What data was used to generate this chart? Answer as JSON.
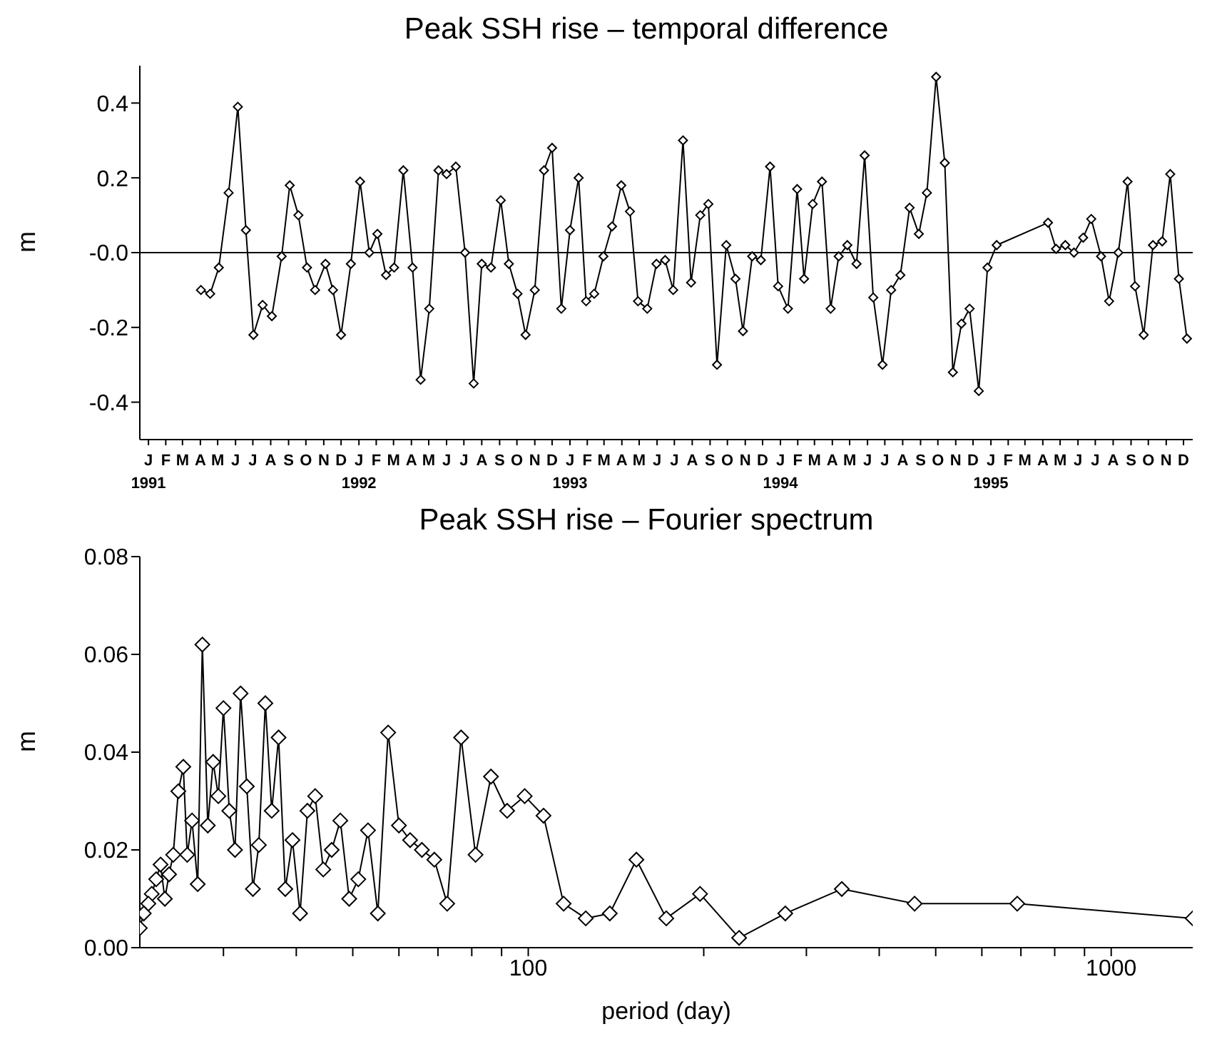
{
  "chart_data": [
    {
      "type": "line",
      "title": "Peak SSH rise – temporal difference",
      "ylabel": "m",
      "color": "#000000",
      "marker": "diamond",
      "line_style": "solid",
      "grid": false,
      "x": [
        "1991-04-17",
        "1991-05-03",
        "1991-05-18",
        "1991-06-04",
        "1991-06-20",
        "1991-07-04",
        "1991-07-17",
        "1991-08-02",
        "1991-08-18",
        "1991-09-04",
        "1991-09-18",
        "1991-10-03",
        "1991-10-18",
        "1991-11-01",
        "1991-11-19",
        "1991-12-02",
        "1991-12-16",
        "1992-01-02",
        "1992-01-18",
        "1992-02-03",
        "1992-02-17",
        "1992-03-03",
        "1992-03-17",
        "1992-04-02",
        "1992-04-18",
        "1992-05-02",
        "1992-05-17",
        "1992-06-02",
        "1992-06-16",
        "1992-07-02",
        "1992-07-18",
        "1992-08-02",
        "1992-08-16",
        "1992-09-01",
        "1992-09-18",
        "1992-10-02",
        "1992-10-17",
        "1992-10-31",
        "1992-11-16",
        "1992-12-02",
        "1992-12-16",
        "1993-01-01",
        "1993-01-16",
        "1993-01-31",
        "1993-02-13",
        "1993-02-27",
        "1993-03-15",
        "1993-03-30",
        "1993-04-15",
        "1993-04-30",
        "1993-05-14",
        "1993-05-30",
        "1993-06-15",
        "1993-06-30",
        "1993-07-14",
        "1993-07-31",
        "1993-08-14",
        "1993-08-30",
        "1993-09-13",
        "1993-09-28",
        "1993-10-14",
        "1993-10-30",
        "1993-11-12",
        "1993-11-28",
        "1993-12-13",
        "1993-12-29",
        "1994-01-12",
        "1994-01-29",
        "1994-02-14",
        "1994-02-26",
        "1994-03-13",
        "1994-03-29",
        "1994-04-13",
        "1994-04-27",
        "1994-05-12",
        "1994-05-28",
        "1994-06-11",
        "1994-06-26",
        "1994-07-12",
        "1994-07-27",
        "1994-08-12",
        "1994-08-28",
        "1994-09-13",
        "1994-09-27",
        "1994-10-13",
        "1994-10-28",
        "1994-11-11",
        "1994-11-26",
        "1994-12-10",
        "1994-12-26",
        "1995-01-10",
        "1995-01-26",
        "1995-04-25",
        "1995-05-09",
        "1995-05-25",
        "1995-06-09",
        "1995-06-25",
        "1995-07-09",
        "1995-07-26",
        "1995-08-09",
        "1995-08-25",
        "1995-09-10",
        "1995-09-23",
        "1995-10-08",
        "1995-10-24",
        "1995-11-09",
        "1995-11-23",
        "1995-12-08",
        "1995-12-22"
      ],
      "values": [
        -0.1,
        -0.11,
        -0.04,
        0.16,
        0.39,
        0.06,
        -0.22,
        -0.14,
        -0.17,
        -0.01,
        0.18,
        0.1,
        -0.04,
        -0.1,
        -0.03,
        -0.1,
        -0.22,
        -0.03,
        0.19,
        0.0,
        0.05,
        -0.06,
        -0.04,
        0.22,
        -0.04,
        -0.34,
        -0.15,
        0.22,
        0.21,
        0.23,
        0.0,
        -0.35,
        -0.03,
        -0.04,
        0.14,
        -0.03,
        -0.11,
        -0.22,
        -0.1,
        0.22,
        0.28,
        -0.15,
        0.06,
        0.2,
        -0.13,
        -0.11,
        -0.01,
        0.07,
        0.18,
        0.11,
        -0.13,
        -0.15,
        -0.03,
        -0.02,
        -0.1,
        0.3,
        -0.08,
        0.1,
        0.13,
        -0.3,
        0.02,
        -0.07,
        -0.21,
        -0.01,
        -0.02,
        0.23,
        -0.09,
        -0.15,
        0.17,
        -0.07,
        0.13,
        0.19,
        -0.15,
        -0.01,
        0.02,
        -0.03,
        0.26,
        -0.12,
        -0.3,
        -0.1,
        -0.06,
        0.12,
        0.05,
        0.16,
        0.47,
        0.24,
        -0.32,
        -0.19,
        -0.15,
        -0.37,
        -0.04,
        0.02,
        0.08,
        0.01,
        0.02,
        0.0,
        0.04,
        0.09,
        -0.01,
        -0.13,
        0.0,
        0.19,
        -0.09,
        -0.22,
        0.02,
        0.03,
        0.21,
        -0.07,
        -0.23
      ],
      "xlim": [
        "1991-01-01",
        "1996-01-01"
      ],
      "xticks": [
        {
          "value": "1991-01-16",
          "label": "J\n1991"
        },
        {
          "value": "1991-02-15",
          "label": "F"
        },
        {
          "value": "1991-03-16",
          "label": "M"
        },
        {
          "value": "1991-04-16",
          "label": "A"
        },
        {
          "value": "1991-05-16",
          "label": "M"
        },
        {
          "value": "1991-06-16",
          "label": "J"
        },
        {
          "value": "1991-07-16",
          "label": "J"
        },
        {
          "value": "1991-08-16",
          "label": "A"
        },
        {
          "value": "1991-09-16",
          "label": "S"
        },
        {
          "value": "1991-10-16",
          "label": "O"
        },
        {
          "value": "1991-11-16",
          "label": "N"
        },
        {
          "value": "1991-12-16",
          "label": "D"
        },
        {
          "value": "1992-01-16",
          "label": "J\n1992"
        },
        {
          "value": "1992-02-15",
          "label": "F"
        },
        {
          "value": "1992-03-16",
          "label": "M"
        },
        {
          "value": "1992-04-16",
          "label": "A"
        },
        {
          "value": "1992-05-16",
          "label": "M"
        },
        {
          "value": "1992-06-16",
          "label": "J"
        },
        {
          "value": "1992-07-16",
          "label": "J"
        },
        {
          "value": "1992-08-16",
          "label": "A"
        },
        {
          "value": "1992-09-16",
          "label": "S"
        },
        {
          "value": "1992-10-16",
          "label": "O"
        },
        {
          "value": "1992-11-16",
          "label": "N"
        },
        {
          "value": "1992-12-16",
          "label": "D"
        },
        {
          "value": "1993-01-16",
          "label": "J\n1993"
        },
        {
          "value": "1993-02-15",
          "label": "F"
        },
        {
          "value": "1993-03-16",
          "label": "M"
        },
        {
          "value": "1993-04-16",
          "label": "A"
        },
        {
          "value": "1993-05-16",
          "label": "M"
        },
        {
          "value": "1993-06-16",
          "label": "J"
        },
        {
          "value": "1993-07-16",
          "label": "J"
        },
        {
          "value": "1993-08-16",
          "label": "A"
        },
        {
          "value": "1993-09-16",
          "label": "S"
        },
        {
          "value": "1993-10-16",
          "label": "O"
        },
        {
          "value": "1993-11-16",
          "label": "N"
        },
        {
          "value": "1993-12-16",
          "label": "D"
        },
        {
          "value": "1994-01-16",
          "label": "J\n1994"
        },
        {
          "value": "1994-02-15",
          "label": "F"
        },
        {
          "value": "1994-03-16",
          "label": "M"
        },
        {
          "value": "1994-04-16",
          "label": "A"
        },
        {
          "value": "1994-05-16",
          "label": "M"
        },
        {
          "value": "1994-06-16",
          "label": "J"
        },
        {
          "value": "1994-07-16",
          "label": "J"
        },
        {
          "value": "1994-08-16",
          "label": "A"
        },
        {
          "value": "1994-09-16",
          "label": "S"
        },
        {
          "value": "1994-10-16",
          "label": "O"
        },
        {
          "value": "1994-11-16",
          "label": "N"
        },
        {
          "value": "1994-12-16",
          "label": "D"
        },
        {
          "value": "1995-01-16",
          "label": "J\n1995"
        },
        {
          "value": "1995-02-15",
          "label": "F"
        },
        {
          "value": "1995-03-16",
          "label": "M"
        },
        {
          "value": "1995-04-16",
          "label": "A"
        },
        {
          "value": "1995-05-16",
          "label": "M"
        },
        {
          "value": "1995-06-16",
          "label": "J"
        },
        {
          "value": "1995-07-16",
          "label": "J"
        },
        {
          "value": "1995-08-16",
          "label": "A"
        },
        {
          "value": "1995-09-16",
          "label": "S"
        },
        {
          "value": "1995-10-16",
          "label": "O"
        },
        {
          "value": "1995-11-16",
          "label": "N"
        },
        {
          "value": "1995-12-16",
          "label": "D"
        }
      ],
      "ylim": [
        -0.5,
        0.5
      ],
      "yticks": [
        -0.4,
        -0.2,
        {
          "value": 0,
          "label": "-0.0"
        },
        0.2,
        0.4
      ],
      "ref_lines": [
        {
          "axis": "y",
          "value": 0,
          "color": "#000000"
        }
      ]
    },
    {
      "type": "line",
      "title": "Peak SSH rise – Fourier spectrum",
      "xlabel": "period (day)",
      "ylabel": "m",
      "color": "#000000",
      "marker": "diamond",
      "line_style": "solid",
      "grid": false,
      "log": "x",
      "x": [
        1380,
        690,
        460,
        345,
        276,
        230,
        197.1,
        172.5,
        153.3,
        138,
        125.5,
        115,
        106.2,
        98.6,
        92,
        86.3,
        81.2,
        76.7,
        72.6,
        69,
        65.7,
        62.7,
        60,
        57.5,
        55.2,
        53.1,
        51.1,
        49.3,
        47.6,
        46,
        44.5,
        43.1,
        41.8,
        40.6,
        39.4,
        38.3,
        37.3,
        36.3,
        35.4,
        34.5,
        33.7,
        32.9,
        32.1,
        31.4,
        30.7,
        30,
        29.4,
        28.8,
        28.2,
        27.6,
        27.1,
        26.5,
        26,
        25.6,
        25.1,
        24.6,
        24.2,
        23.8,
        23.4,
        23,
        22.6,
        22.3,
        21.9,
        21.56
      ],
      "values": [
        0.006,
        0.009,
        0.009,
        0.012,
        0.007,
        0.002,
        0.011,
        0.006,
        0.018,
        0.007,
        0.006,
        0.009,
        0.027,
        0.031,
        0.028,
        0.035,
        0.019,
        0.043,
        0.009,
        0.018,
        0.02,
        0.022,
        0.025,
        0.044,
        0.007,
        0.024,
        0.014,
        0.01,
        0.026,
        0.02,
        0.016,
        0.031,
        0.028,
        0.007,
        0.022,
        0.012,
        0.043,
        0.028,
        0.05,
        0.021,
        0.012,
        0.033,
        0.052,
        0.02,
        0.028,
        0.049,
        0.031,
        0.038,
        0.025,
        0.062,
        0.013,
        0.026,
        0.019,
        0.037,
        0.032,
        0.019,
        0.015,
        0.01,
        0.017,
        0.014,
        0.011,
        0.009,
        0.007,
        0.004
      ],
      "xlim": [
        21.56,
        1380
      ],
      "xticks": [
        {
          "value": 30,
          "label": null
        },
        {
          "value": 40,
          "label": null
        },
        {
          "value": 50,
          "label": null
        },
        {
          "value": 60,
          "label": null
        },
        {
          "value": 70,
          "label": null
        },
        {
          "value": 80,
          "label": null
        },
        {
          "value": 90,
          "label": null
        },
        100,
        {
          "value": 200,
          "label": null
        },
        {
          "value": 300,
          "label": null
        },
        {
          "value": 400,
          "label": null
        },
        {
          "value": 500,
          "label": null
        },
        {
          "value": 600,
          "label": null
        },
        {
          "value": 700,
          "label": null
        },
        {
          "value": 800,
          "label": null
        },
        {
          "value": 900,
          "label": null
        },
        1000
      ],
      "ylim": [
        0,
        0.08
      ],
      "yticks": [
        {
          "value": 0,
          "label": "0.00"
        },
        {
          "value": 0.02,
          "label": "0.02"
        },
        {
          "value": 0.04,
          "label": "0.04"
        },
        {
          "value": 0.06,
          "label": "0.06"
        },
        {
          "value": 0.08,
          "label": "0.08"
        }
      ]
    }
  ]
}
